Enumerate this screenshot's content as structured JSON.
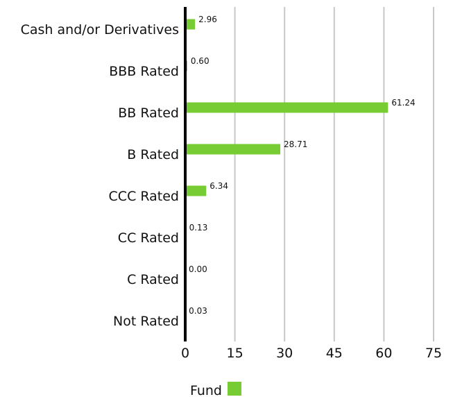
{
  "chart_data": {
    "type": "bar",
    "orientation": "horizontal",
    "categories": [
      "Cash and/or Derivatives",
      "BBB Rated",
      "BB Rated",
      "B Rated",
      "CCC Rated",
      "CC Rated",
      "C Rated",
      "Not Rated"
    ],
    "series": [
      {
        "name": "Fund",
        "values": [
          2.96,
          0.6,
          61.24,
          28.71,
          6.34,
          0.13,
          0.0,
          0.03
        ],
        "labels": [
          "2.96",
          "0.60",
          "61.24",
          "28.71",
          "6.34",
          "0.13",
          "0.00",
          "0.03"
        ]
      }
    ],
    "xlim": [
      0,
      75
    ],
    "xticks": [
      "0",
      "15",
      "30",
      "45",
      "60",
      "75"
    ],
    "grid": "vertical",
    "legend_position": "bottom-center",
    "colors": {
      "bar": "#77cc33",
      "grid": "#c8c8c8",
      "axis": "#000000"
    }
  }
}
